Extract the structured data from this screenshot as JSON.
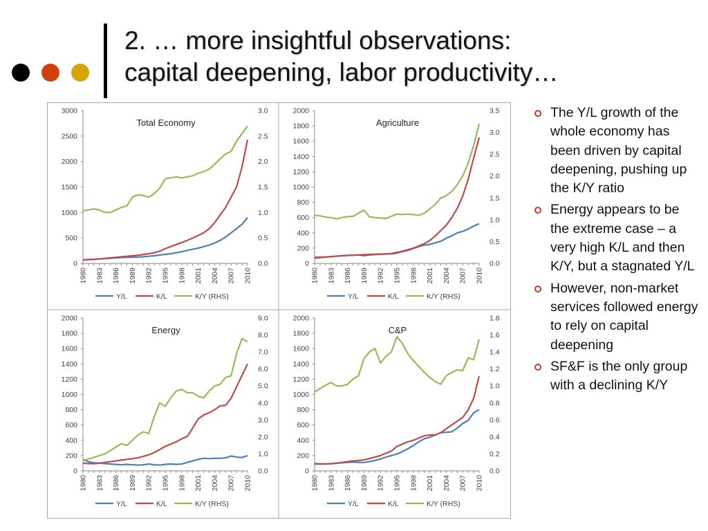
{
  "slide": {
    "title_line1": "2. … more insightful observations:",
    "title_line2": "capital deepening, labor productivity…",
    "dot_colors": [
      "#000000",
      "#d2400e",
      "#d9a406"
    ],
    "bullets": [
      "The Y/L growth of the whole economy has been driven by capital deepening, pushing up the K/Y ratio",
      "Energy appears to be the extreme case – a very high K/L and then K/Y, but a stagnated Y/L",
      "However, non-market services followed energy to rely on capital deepening",
      "SF&F is the only group with a declining K/Y"
    ],
    "bullet_color": "#c0392b"
  },
  "colors": {
    "Y/L": "#4a7ebb",
    "K/L": "#be4b48",
    "K/Y (RHS)": "#98b954",
    "frame": "#a6a6a6",
    "text": "#404040"
  },
  "chart_data": [
    {
      "type": "line",
      "title": "Total Economy",
      "x": [
        1980,
        1981,
        1982,
        1983,
        1984,
        1985,
        1986,
        1987,
        1988,
        1989,
        1990,
        1991,
        1992,
        1993,
        1994,
        1995,
        1996,
        1997,
        1998,
        1999,
        2000,
        2001,
        2002,
        2003,
        2004,
        2005,
        2006,
        2007,
        2008,
        2009,
        2010
      ],
      "x_tick_labels": [
        "1980",
        "1983",
        "1986",
        "1989",
        "1992",
        "1995",
        "1998",
        "2001",
        "2004",
        "2007",
        "2010"
      ],
      "ylim": [
        0,
        3000
      ],
      "y_ticks": [
        "0",
        "500",
        "1000",
        "1500",
        "2000",
        "2500",
        "3000"
      ],
      "y2lim": [
        0,
        3
      ],
      "y2_ticks": [
        "0.0",
        "0.5",
        "1.0",
        "1.5",
        "2.0",
        "2.5",
        "3.0"
      ],
      "series": [
        {
          "name": "Y/L",
          "axis": "left",
          "values": [
            70,
            75,
            80,
            88,
            95,
            102,
            108,
            115,
            120,
            123,
            125,
            130,
            140,
            150,
            165,
            178,
            190,
            210,
            230,
            255,
            280,
            300,
            330,
            360,
            400,
            450,
            520,
            600,
            680,
            770,
            900
          ]
        },
        {
          "name": "K/L",
          "axis": "left",
          "values": [
            70,
            75,
            80,
            88,
            98,
            110,
            120,
            130,
            140,
            150,
            160,
            175,
            190,
            210,
            240,
            290,
            330,
            370,
            410,
            450,
            500,
            550,
            600,
            680,
            800,
            950,
            1100,
            1300,
            1500,
            1900,
            2430
          ]
        },
        {
          "name": "K/Y (RHS)",
          "axis": "right",
          "values": [
            1.03,
            1.05,
            1.07,
            1.05,
            1.0,
            1.0,
            1.05,
            1.1,
            1.13,
            1.3,
            1.35,
            1.33,
            1.3,
            1.37,
            1.48,
            1.66,
            1.68,
            1.7,
            1.68,
            1.7,
            1.72,
            1.77,
            1.8,
            1.85,
            1.95,
            2.05,
            2.15,
            2.2,
            2.4,
            2.55,
            2.7
          ]
        }
      ],
      "legend": [
        "Y/L",
        "K/L",
        "K/Y (RHS)"
      ],
      "legend_position": "bottom"
    },
    {
      "type": "line",
      "title": "Agriculture",
      "x": [
        1980,
        1981,
        1982,
        1983,
        1984,
        1985,
        1986,
        1987,
        1988,
        1989,
        1990,
        1991,
        1992,
        1993,
        1994,
        1995,
        1996,
        1997,
        1998,
        1999,
        2000,
        2001,
        2002,
        2003,
        2004,
        2005,
        2006,
        2007,
        2008,
        2009,
        2010
      ],
      "x_tick_labels": [
        "1980",
        "1983",
        "1986",
        "1989",
        "1992",
        "1995",
        "1998",
        "2001",
        "2004",
        "2007",
        "2010"
      ],
      "ylim": [
        0,
        2000
      ],
      "y_ticks": [
        "0",
        "200",
        "400",
        "600",
        "800",
        "1000",
        "1200",
        "1400",
        "1600",
        "1800",
        "2000"
      ],
      "y2lim": [
        0,
        3.5
      ],
      "y2_ticks": [
        "0.0",
        "0.5",
        "1.0",
        "1.5",
        "2.0",
        "2.5",
        "3.0",
        "3.5"
      ],
      "series": [
        {
          "name": "Y/L",
          "axis": "left",
          "values": [
            70,
            75,
            82,
            88,
            95,
            100,
            105,
            108,
            110,
            100,
            110,
            115,
            120,
            122,
            125,
            135,
            155,
            170,
            195,
            220,
            240,
            250,
            270,
            290,
            330,
            360,
            400,
            420,
            450,
            490,
            520
          ]
        },
        {
          "name": "K/L",
          "axis": "left",
          "values": [
            80,
            82,
            85,
            90,
            95,
            100,
            105,
            108,
            112,
            115,
            118,
            120,
            122,
            125,
            130,
            145,
            160,
            180,
            200,
            230,
            260,
            300,
            360,
            430,
            500,
            600,
            720,
            880,
            1100,
            1380,
            1650
          ]
        },
        {
          "name": "K/Y (RHS)",
          "axis": "right",
          "values": [
            1.1,
            1.09,
            1.06,
            1.05,
            1.02,
            1.05,
            1.07,
            1.08,
            1.15,
            1.22,
            1.07,
            1.05,
            1.04,
            1.03,
            1.08,
            1.13,
            1.12,
            1.13,
            1.12,
            1.1,
            1.15,
            1.25,
            1.35,
            1.5,
            1.55,
            1.65,
            1.8,
            2.0,
            2.3,
            2.7,
            3.2
          ]
        }
      ],
      "legend": [
        "Y/L",
        "K/L",
        "K/Y (RHS)"
      ],
      "legend_position": "bottom"
    },
    {
      "type": "line",
      "title": "Energy",
      "x": [
        1980,
        1981,
        1982,
        1983,
        1984,
        1985,
        1986,
        1987,
        1988,
        1989,
        1990,
        1991,
        1992,
        1993,
        1994,
        1995,
        1996,
        1997,
        1998,
        1999,
        2000,
        2001,
        2002,
        2003,
        2004,
        2005,
        2006,
        2007,
        2008,
        2009,
        2010
      ],
      "x_tick_labels": [
        "1980",
        "1983",
        "1986",
        "1989",
        "1992",
        "1995",
        "1998",
        "2001",
        "2004",
        "2007",
        "2010"
      ],
      "ylim": [
        0,
        2000
      ],
      "y_ticks": [
        "0",
        "200",
        "400",
        "600",
        "800",
        "1000",
        "1200",
        "1400",
        "1600",
        "1800",
        "2000"
      ],
      "y2lim": [
        0,
        9
      ],
      "y2_ticks": [
        "0.0",
        "1.0",
        "2.0",
        "3.0",
        "4.0",
        "5.0",
        "6.0",
        "7.0",
        "8.0",
        "9.0"
      ],
      "series": [
        {
          "name": "Y/L",
          "axis": "left",
          "values": [
            150,
            120,
            105,
            100,
            95,
            90,
            85,
            80,
            85,
            80,
            75,
            80,
            90,
            80,
            75,
            85,
            90,
            85,
            90,
            110,
            130,
            150,
            165,
            160,
            165,
            165,
            170,
            195,
            180,
            175,
            200
          ]
        },
        {
          "name": "K/L",
          "axis": "left",
          "values": [
            100,
            95,
            95,
            100,
            110,
            120,
            130,
            140,
            150,
            160,
            170,
            190,
            210,
            240,
            280,
            320,
            350,
            380,
            420,
            450,
            560,
            680,
            730,
            760,
            800,
            850,
            860,
            950,
            1100,
            1250,
            1400
          ]
        },
        {
          "name": "K/Y (RHS)",
          "axis": "right",
          "values": [
            0.6,
            0.7,
            0.8,
            0.9,
            1.0,
            1.2,
            1.4,
            1.6,
            1.5,
            1.8,
            2.1,
            2.3,
            2.2,
            3.2,
            4.0,
            3.8,
            4.3,
            4.7,
            4.8,
            4.6,
            4.6,
            4.4,
            4.3,
            4.7,
            5.0,
            5.1,
            5.5,
            5.6,
            6.9,
            7.8,
            7.6
          ]
        }
      ],
      "legend": [
        "Y/L",
        "K/L",
        "K/Y (RHS)"
      ],
      "legend_position": "bottom"
    },
    {
      "type": "line",
      "title": "C&P",
      "x": [
        1980,
        1981,
        1982,
        1983,
        1984,
        1985,
        1986,
        1987,
        1988,
        1989,
        1990,
        1991,
        1992,
        1993,
        1994,
        1995,
        1996,
        1997,
        1998,
        1999,
        2000,
        2001,
        2002,
        2003,
        2004,
        2005,
        2006,
        2007,
        2008,
        2009,
        2010
      ],
      "x_tick_labels": [
        "1980",
        "1983",
        "1986",
        "1989",
        "1992",
        "1995",
        "1998",
        "2001",
        "2004",
        "2007",
        "2010"
      ],
      "ylim": [
        0,
        2000
      ],
      "y_ticks": [
        "0",
        "200",
        "400",
        "600",
        "800",
        "1000",
        "1200",
        "1400",
        "1600",
        "1800",
        "2000"
      ],
      "y2lim": [
        0,
        1.8
      ],
      "y2_ticks": [
        "0.0",
        "0.2",
        "0.4",
        "0.6",
        "0.8",
        "1.0",
        "1.2",
        "1.4",
        "1.6",
        "1.8"
      ],
      "series": [
        {
          "name": "Y/L",
          "axis": "left",
          "values": [
            90,
            88,
            90,
            92,
            100,
            105,
            110,
            115,
            110,
            110,
            120,
            135,
            155,
            180,
            200,
            220,
            250,
            290,
            330,
            380,
            420,
            440,
            470,
            500,
            505,
            510,
            560,
            620,
            660,
            760,
            800
          ]
        },
        {
          "name": "K/L",
          "axis": "left",
          "values": [
            95,
            92,
            92,
            95,
            100,
            110,
            120,
            130,
            135,
            145,
            160,
            180,
            200,
            230,
            260,
            320,
            350,
            380,
            400,
            430,
            460,
            470,
            470,
            500,
            550,
            600,
            650,
            700,
            800,
            950,
            1240
          ]
        },
        {
          "name": "K/Y (RHS)",
          "axis": "right",
          "values": [
            0.93,
            0.97,
            1.01,
            1.04,
            1.0,
            1.0,
            1.02,
            1.08,
            1.12,
            1.32,
            1.4,
            1.44,
            1.27,
            1.35,
            1.4,
            1.58,
            1.5,
            1.38,
            1.3,
            1.23,
            1.16,
            1.1,
            1.05,
            1.02,
            1.12,
            1.16,
            1.19,
            1.18,
            1.33,
            1.31,
            1.55
          ]
        }
      ],
      "legend": [
        "Y/L",
        "K/L",
        "K/Y (RHS)"
      ],
      "legend_position": "bottom"
    }
  ]
}
